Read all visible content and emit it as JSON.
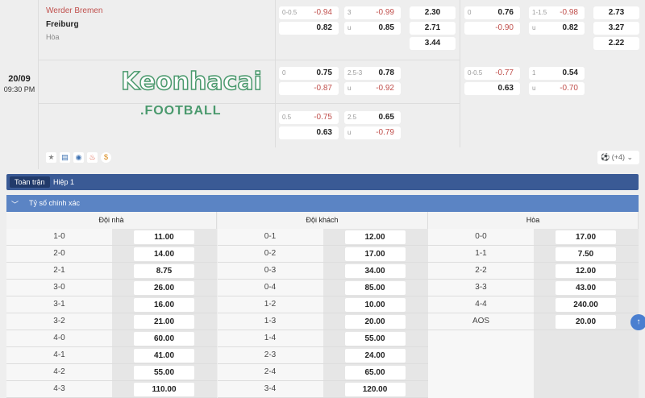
{
  "match": {
    "date": "20/09",
    "time": "09:30 PM",
    "home": "Werder Bremen",
    "away": "Freiburg",
    "draw": "Hòa",
    "more": "(+4)"
  },
  "odds": {
    "r1": {
      "fh_h": {
        "line": "0-0.5",
        "home": "-0.94",
        "away": "0.82"
      },
      "fh_ou": {
        "line": "3",
        "over": "-0.99",
        "u": "u",
        "under": "0.85"
      },
      "fh_1x2": [
        "2.30",
        "2.71",
        "3.44"
      ],
      "h1_h": {
        "line": "0",
        "home": "0.76",
        "away": "-0.90"
      },
      "h1_ou": {
        "line": "1-1.5",
        "over": "-0.98",
        "u": "u",
        "under": "0.82"
      },
      "h1_1x2": [
        "2.73",
        "3.27",
        "2.22"
      ]
    },
    "r2": {
      "fh_h": {
        "line": "0",
        "home": "0.75",
        "away": "-0.87"
      },
      "fh_ou": {
        "line": "2.5-3",
        "over": "0.78",
        "u": "u",
        "under": "-0.92"
      },
      "h1_h": {
        "line": "0-0.5",
        "home": "-0.77",
        "away": "0.63"
      },
      "h1_ou": {
        "line": "1",
        "over": "0.54",
        "u": "u",
        "under": "-0.70"
      }
    },
    "r3": {
      "fh_h": {
        "line": "0.5",
        "home": "-0.75",
        "away": "0.63"
      },
      "fh_ou": {
        "line": "2.5",
        "over": "0.65",
        "u": "u",
        "under": "-0.79"
      }
    }
  },
  "tabs": [
    "Toàn trận",
    "Hiệp 1"
  ],
  "section": "Tỷ số chính xác",
  "logo": "Keonhacai .FOOTBALL",
  "columns": [
    {
      "title": "Đội nhà",
      "rows": [
        [
          "1-0",
          "11.00"
        ],
        [
          "2-0",
          "14.00"
        ],
        [
          "2-1",
          "8.75"
        ],
        [
          "3-0",
          "26.00"
        ],
        [
          "3-1",
          "16.00"
        ],
        [
          "3-2",
          "21.00"
        ],
        [
          "4-0",
          "60.00"
        ],
        [
          "4-1",
          "41.00"
        ],
        [
          "4-2",
          "55.00"
        ],
        [
          "4-3",
          "110.00"
        ]
      ]
    },
    {
      "title": "Đội khách",
      "rows": [
        [
          "0-1",
          "12.00"
        ],
        [
          "0-2",
          "17.00"
        ],
        [
          "0-3",
          "34.00"
        ],
        [
          "0-4",
          "85.00"
        ],
        [
          "1-2",
          "10.00"
        ],
        [
          "1-3",
          "20.00"
        ],
        [
          "1-4",
          "55.00"
        ],
        [
          "2-3",
          "24.00"
        ],
        [
          "2-4",
          "65.00"
        ],
        [
          "3-4",
          "120.00"
        ]
      ]
    },
    {
      "title": "Hòa",
      "rows": [
        [
          "0-0",
          "17.00"
        ],
        [
          "1-1",
          "7.50"
        ],
        [
          "2-2",
          "12.00"
        ],
        [
          "3-3",
          "43.00"
        ],
        [
          "4-4",
          "240.00"
        ],
        [
          "AOS",
          "20.00"
        ]
      ]
    }
  ]
}
